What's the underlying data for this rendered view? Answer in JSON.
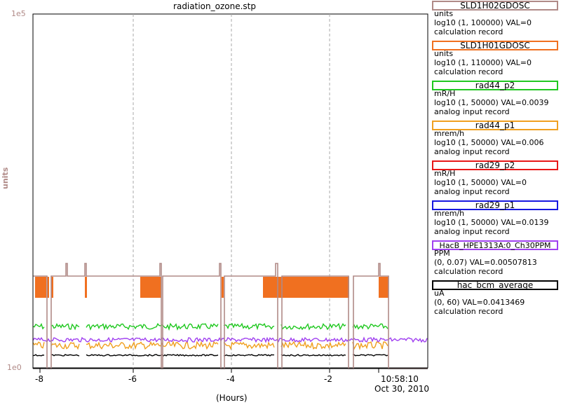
{
  "title": "radiation_ozone.stp",
  "y_axis": {
    "label": "units",
    "top_tick": "1e5",
    "bottom_tick": "1e0",
    "color": "#b08a87"
  },
  "x_axis": {
    "label": "(Hours)",
    "ticks": [
      "-8",
      "-6",
      "-4",
      "-2"
    ],
    "end_time": "10:58:10",
    "end_date": "Oct 30, 2010"
  },
  "legend": [
    {
      "name": "SLD1H02GDOSC",
      "unit": "units",
      "range": "log10 (1, 100000) VAL=0",
      "rtype": "calculation record",
      "color": "#b08a87"
    },
    {
      "name": "SLD1H01GDOSC",
      "unit": "units",
      "range": "log10 (1, 110000) VAL=0",
      "rtype": "calculation record",
      "color": "#f07020"
    },
    {
      "name": "rad44_p2",
      "unit": "mR/H",
      "range": "log10 (1, 50000) VAL=0.0039",
      "rtype": "analog input record",
      "color": "#20c820"
    },
    {
      "name": "rad44_p1",
      "unit": "mrem/h",
      "range": "log10 (1, 50000) VAL=0.006",
      "rtype": "analog input record",
      "color": "#f0a020"
    },
    {
      "name": "rad29_p2",
      "unit": "mR/H",
      "range": "log10 (1, 50000) VAL=0",
      "rtype": "analog input record",
      "color": "#e81818"
    },
    {
      "name": "rad29_p1",
      "unit": "mrem/h",
      "range": "log10 (1, 50000) VAL=0.0139",
      "rtype": "analog input record",
      "color": "#1818e0"
    },
    {
      "name": "HacB_HPE1313A:0_Ch30PPM",
      "unit": "PPM",
      "range": "(0, 0.07) VAL=0.00507813",
      "rtype": "calculation record",
      "color": "#a040f0"
    },
    {
      "name": "hac_bcm_average",
      "unit": "uA",
      "range": "(0, 60) VAL=0.0413469",
      "rtype": "calculation record",
      "color": "#000000"
    }
  ]
}
